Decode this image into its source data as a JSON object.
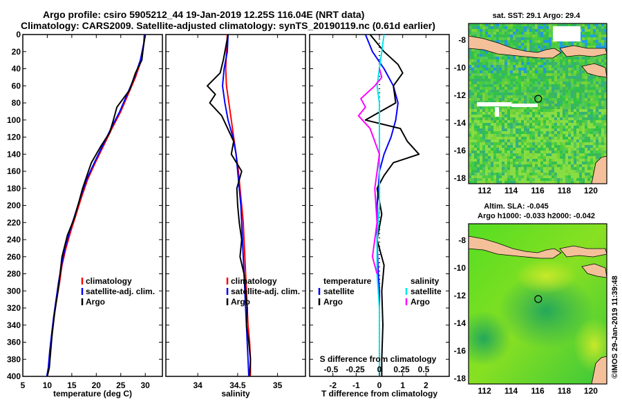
{
  "header": {
    "title_line1": "Argo profile: csiro 5905212_44 19-Jan-2019 12.25S 116.04E (NRT data)",
    "title_line2": "Climatology: CARS2009. Satellite-adjusted climatology: synTS_20190119.nc (0.61d earlier)"
  },
  "colors": {
    "climatology": "#ff0000",
    "satellite": "#0000ff",
    "argo": "#000000",
    "salinity_satellite": "#00e5ee",
    "salinity_argo": "#ff00ff",
    "land": "#f4c09a",
    "ocean_green": "#33cc33"
  },
  "chart_data": [
    {
      "id": "temperature",
      "type": "line",
      "xlabel": "temperature (deg C)",
      "xlim": [
        5,
        33.5
      ],
      "ylim": [
        400,
        0
      ],
      "xticks": [
        "5",
        "10",
        "15",
        "20",
        "25",
        "30"
      ],
      "xtick_values": [
        5,
        10,
        15,
        20,
        25,
        30
      ],
      "yticks": [
        "0",
        "20",
        "40",
        "60",
        "80",
        "100",
        "120",
        "140",
        "160",
        "180",
        "200",
        "220",
        "240",
        "260",
        "280",
        "300",
        "320",
        "340",
        "360",
        "380",
        "400"
      ],
      "legend": [
        "climatology",
        "satellite-adj. clim.",
        "Argo"
      ],
      "series": [
        {
          "name": "climatology",
          "color": "#ff0000",
          "x": [
            29.9,
            29.7,
            29.2,
            28,
            26.5,
            25,
            23.2,
            21.5,
            19.8,
            18.2,
            17,
            15.9,
            14.8,
            13.8,
            13.0,
            12.5,
            11.9,
            11.4,
            11.0,
            10.6,
            10.3,
            10.0
          ],
          "depth": [
            0,
            10,
            30,
            50,
            70,
            90,
            110,
            130,
            150,
            170,
            190,
            210,
            230,
            250,
            270,
            290,
            310,
            330,
            350,
            370,
            390,
            400
          ]
        },
        {
          "name": "satellite-adj. clim.",
          "color": "#0000ff",
          "x": [
            29.8,
            29.7,
            29.0,
            27.8,
            26.3,
            24.8,
            23.0,
            21.3,
            19.6,
            18.0,
            16.8,
            15.7,
            14.6,
            13.6,
            12.9,
            12.3,
            11.8,
            11.3,
            10.9,
            10.5,
            10.2,
            9.9
          ],
          "depth": [
            0,
            10,
            30,
            50,
            70,
            90,
            110,
            130,
            150,
            170,
            190,
            210,
            230,
            250,
            270,
            290,
            310,
            330,
            350,
            370,
            390,
            400
          ]
        },
        {
          "name": "Argo",
          "color": "#000000",
          "x": [
            30.0,
            29.6,
            29.3,
            28.0,
            26.8,
            24.2,
            23.5,
            22.7,
            21.0,
            19.0,
            18.1,
            17.2,
            16.5,
            15.5,
            14.1,
            13.0,
            12.6,
            12.2,
            11.5,
            11.0,
            10.7,
            10.4,
            10.0
          ],
          "depth": [
            0,
            15,
            30,
            45,
            65,
            85,
            100,
            115,
            130,
            150,
            165,
            180,
            195,
            215,
            235,
            260,
            280,
            300,
            325,
            350,
            370,
            390,
            400
          ]
        }
      ]
    },
    {
      "id": "salinity",
      "type": "line",
      "xlabel": "salinity",
      "xlim": [
        33.6,
        35.35
      ],
      "ylim": [
        400,
        0
      ],
      "xticks": [
        "34",
        "34.5",
        "35"
      ],
      "xtick_values": [
        34,
        34.5,
        35
      ],
      "legend": [
        "climatology",
        "satellite-adj. clim.",
        "Argo"
      ],
      "series": [
        {
          "name": "climatology",
          "color": "#ff0000",
          "x": [
            34.37,
            34.36,
            34.35,
            34.36,
            34.39,
            34.42,
            34.45,
            34.48,
            34.51,
            34.53,
            34.55,
            34.57,
            34.58,
            34.59,
            34.6,
            34.61,
            34.62,
            34.63,
            34.65,
            34.66,
            34.66
          ],
          "depth": [
            0,
            20,
            40,
            60,
            80,
            100,
            120,
            140,
            160,
            180,
            200,
            220,
            240,
            260,
            280,
            300,
            320,
            340,
            360,
            380,
            400
          ]
        },
        {
          "name": "satellite-adj. clim.",
          "color": "#0000ff",
          "x": [
            34.38,
            34.37,
            34.33,
            34.31,
            34.34,
            34.38,
            34.44,
            34.48,
            34.5,
            34.52,
            34.54,
            34.55,
            34.56,
            34.57,
            34.58,
            34.59,
            34.6,
            34.61,
            34.62,
            34.63,
            34.64
          ],
          "depth": [
            0,
            20,
            40,
            60,
            80,
            100,
            120,
            140,
            160,
            180,
            200,
            220,
            240,
            260,
            280,
            300,
            320,
            340,
            360,
            380,
            400
          ]
        },
        {
          "name": "Argo",
          "color": "#000000",
          "x": [
            34.38,
            34.35,
            34.32,
            34.28,
            34.12,
            34.22,
            34.15,
            34.3,
            34.35,
            34.45,
            34.42,
            34.55,
            34.49,
            34.5,
            34.52,
            34.55,
            34.53,
            34.58,
            34.6,
            34.62,
            34.61,
            34.64,
            34.66,
            34.65
          ],
          "depth": [
            0,
            15,
            30,
            45,
            60,
            70,
            80,
            95,
            105,
            125,
            140,
            160,
            180,
            200,
            220,
            240,
            260,
            280,
            300,
            320,
            340,
            360,
            380,
            400
          ]
        }
      ]
    },
    {
      "id": "difference",
      "type": "line",
      "xlabel": "T difference from climatology",
      "xlabel_top": "S difference from climatology",
      "xlim": [
        -3,
        3
      ],
      "ylim": [
        400,
        0
      ],
      "xticks": [
        "-2",
        "-1",
        "0",
        "1",
        "2"
      ],
      "xtick_values": [
        -2,
        -1,
        0,
        1,
        2
      ],
      "s_ticks": [
        "-0.5",
        "-0.25",
        "0",
        "0.25",
        "0.5"
      ],
      "legend_temperature": [
        "temperature",
        "satellite",
        "Argo"
      ],
      "legend_salinity": [
        "salinity",
        "satellite",
        "Argo"
      ],
      "series": [
        {
          "name": "T satellite",
          "color": "#0000ff",
          "x": [
            -0.6,
            -0.3,
            0.2,
            0.6,
            0.8,
            0.7,
            0.5,
            0.2,
            0.0,
            -0.1,
            -0.1,
            -0.05,
            0.0,
            0.0,
            0.0,
            0.0,
            0.0
          ],
          "depth": [
            0,
            20,
            40,
            60,
            80,
            100,
            120,
            140,
            160,
            200,
            240,
            280,
            300,
            330,
            360,
            380,
            400
          ]
        },
        {
          "name": "T Argo",
          "color": "#000000",
          "x": [
            -0.4,
            0.2,
            0.8,
            1.0,
            0.6,
            0.7,
            -0.6,
            0.9,
            1.2,
            1.7,
            0.6,
            0.2,
            -0.1,
            0.1,
            -0.1,
            0.2,
            0.1,
            0.15,
            0.1,
            0.1
          ],
          "depth": [
            0,
            20,
            35,
            45,
            60,
            80,
            100,
            110,
            125,
            140,
            150,
            165,
            180,
            210,
            240,
            270,
            300,
            340,
            380,
            400
          ]
        },
        {
          "name": "S satellite",
          "color": "#00e5ee",
          "x": [
            0.2,
            0.1,
            0.0,
            -0.1,
            0.0,
            0.0,
            0.0,
            0.0,
            -0.1,
            -0.1,
            0.0,
            0.0,
            0.0
          ],
          "depth": [
            0,
            20,
            40,
            60,
            80,
            120,
            160,
            200,
            240,
            280,
            320,
            360,
            400
          ]
        },
        {
          "name": "S Argo",
          "color": "#ff00ff",
          "x": [
            0.0,
            0.1,
            -0.2,
            -0.8,
            -0.6,
            -0.9,
            -0.4,
            0.0,
            -0.2,
            -0.1,
            -0.3,
            -0.1
          ],
          "depth": [
            40,
            50,
            60,
            75,
            85,
            95,
            110,
            140,
            180,
            220,
            260,
            280
          ]
        }
      ]
    },
    {
      "id": "sst_map",
      "type": "heatmap",
      "title": "sat. SST: 29.1 Argo: 29.4",
      "xticks": [
        "112",
        "114",
        "116",
        "118",
        "120"
      ],
      "yticks": [
        "-8",
        "-10",
        "-12",
        "-14",
        "-16",
        "-18"
      ],
      "xlim": [
        110.8,
        121.2
      ],
      "ylim": [
        -18.4,
        -6.8
      ],
      "profile_lon": 116.04,
      "profile_lat": -12.25
    },
    {
      "id": "sla_map",
      "type": "heatmap",
      "title_line1": "Altim. SLA: -0.045",
      "title_line2": "Argo h1000: -0.033 h2000: -0.042",
      "xticks": [
        "112",
        "114",
        "116",
        "118",
        "120"
      ],
      "yticks": [
        "-8",
        "-10",
        "-12",
        "-14",
        "-16",
        "-18"
      ],
      "xlim": [
        110.8,
        121.2
      ],
      "ylim": [
        -18.4,
        -6.8
      ],
      "profile_lon": 116.04,
      "profile_lat": -12.25
    }
  ],
  "credit": "©IMOS 29-Jan-2019 11:39:48"
}
